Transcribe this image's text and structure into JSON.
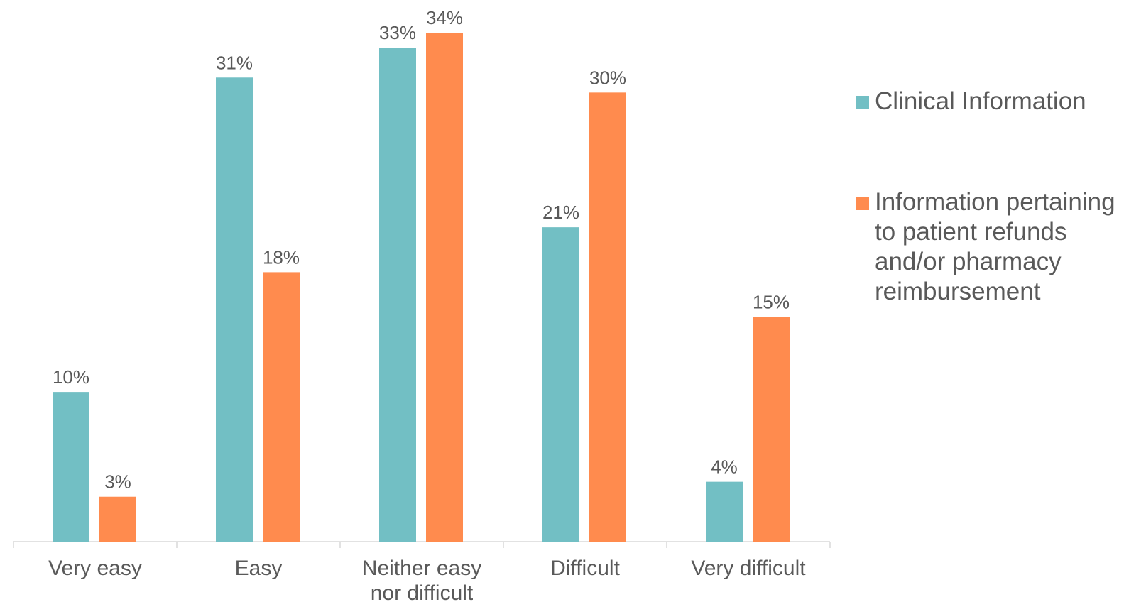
{
  "chart_data": {
    "type": "bar",
    "categories": [
      "Very easy",
      "Easy",
      "Neither easy nor difficult",
      "Difficult",
      "Very difficult"
    ],
    "category_lines": [
      [
        "Very easy"
      ],
      [
        "Easy"
      ],
      [
        "Neither easy",
        "nor difficult"
      ],
      [
        "Difficult"
      ],
      [
        "Very difficult"
      ]
    ],
    "series": [
      {
        "name": "Clinical Information",
        "values": [
          10,
          31,
          33,
          21,
          4
        ],
        "labels": [
          "10%",
          "31%",
          "33%",
          "21%",
          "4%"
        ],
        "color": "#72BFC4"
      },
      {
        "name": "Information pertaining to patient refunds and/or pharmacy reimbursement",
        "values": [
          3,
          18,
          34,
          30,
          15
        ],
        "labels": [
          "3%",
          "18%",
          "34%",
          "30%",
          "15%"
        ],
        "color": "#FF8B4E"
      }
    ],
    "ylim": [
      0,
      34
    ],
    "grid": false,
    "legend_position": "right",
    "title": "",
    "xlabel": "",
    "ylabel": ""
  },
  "legend": {
    "items": [
      {
        "label": "Clinical Information",
        "color": "#72BFC4"
      },
      {
        "label": "Information pertaining to patient refunds and/or pharmacy reimbursement",
        "color": "#FF8B4E"
      }
    ]
  },
  "axis_color": "#D9D9D9",
  "text_color": "#595959"
}
